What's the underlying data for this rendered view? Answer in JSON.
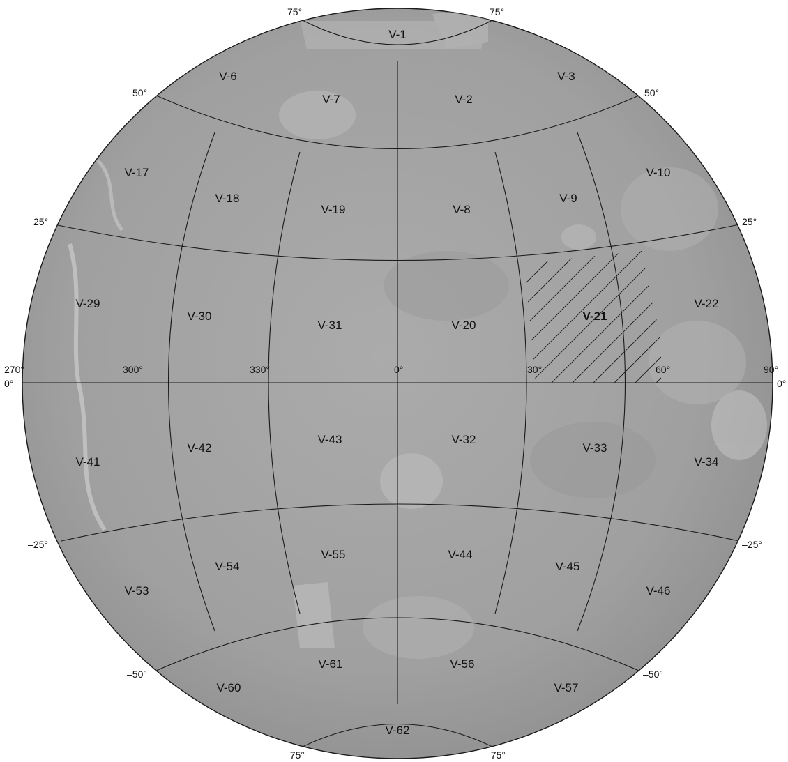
{
  "map": {
    "highlighted_quadrangle": "V-21",
    "colors": {
      "surface": "#a6a6a6",
      "surface_dark": "#8a8a8a",
      "lines": "#1a1a1a",
      "text": "#111111"
    },
    "quadrangles": [
      "V-1",
      "V-2",
      "V-3",
      "V-6",
      "V-7",
      "V-8",
      "V-9",
      "V-10",
      "V-17",
      "V-18",
      "V-19",
      "V-20",
      "V-21",
      "V-22",
      "V-29",
      "V-30",
      "V-31",
      "V-32",
      "V-33",
      "V-34",
      "V-41",
      "V-42",
      "V-43",
      "V-44",
      "V-45",
      "V-46",
      "V-53",
      "V-54",
      "V-55",
      "V-56",
      "V-57",
      "V-60",
      "V-61",
      "V-62"
    ],
    "latitude_labels": {
      "n75": "75°",
      "n50": "50°",
      "n25": "25°",
      "eq": "0°",
      "s25": "–25°",
      "s50": "–50°",
      "s75": "–75°"
    },
    "longitude_labels": [
      "270°",
      "300°",
      "330°",
      "0°",
      "30°",
      "60°",
      "90°"
    ]
  }
}
